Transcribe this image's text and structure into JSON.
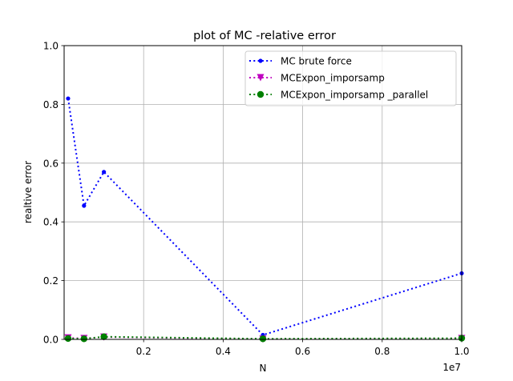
{
  "chart_data": {
    "type": "line",
    "title": "plot of MC -relative error",
    "xlabel": "N",
    "ylabel": "realtive error",
    "x_offset_label": "1e7",
    "xlim": [
      0,
      1.0
    ],
    "ylim": [
      0,
      1.0
    ],
    "x_ticks": [
      0.2,
      0.4,
      0.6,
      0.8,
      1.0
    ],
    "x_tick_labels": [
      "0.2",
      "0.4",
      "0.6",
      "0.8",
      "1.0"
    ],
    "y_ticks": [
      0.0,
      0.2,
      0.4,
      0.6,
      0.8,
      1.0
    ],
    "y_tick_labels": [
      "0.0",
      "0.2",
      "0.4",
      "0.6",
      "0.8",
      "1.0"
    ],
    "grid": true,
    "legend_position": "top-right",
    "series": [
      {
        "name": "MC brute force",
        "color": "#0000ff",
        "marker": "circle-small",
        "x": [
          0.01,
          0.05,
          0.1,
          0.5,
          1.0
        ],
        "y": [
          0.82,
          0.455,
          0.57,
          0.015,
          0.225
        ]
      },
      {
        "name": "MCExpon_imporsamp",
        "color": "#bf00bf",
        "marker": "triangle-down",
        "x": [
          0.01,
          0.05,
          0.1,
          0.5,
          1.0
        ],
        "y": [
          0.005,
          0.003,
          0.008,
          0.001,
          0.003
        ]
      },
      {
        "name": "MCExpon_imporsamp _parallel",
        "color": "#008000",
        "marker": "circle",
        "x": [
          0.01,
          0.05,
          0.1,
          0.5,
          1.0
        ],
        "y": [
          0.003,
          0.002,
          0.009,
          0.002,
          0.004
        ]
      }
    ]
  }
}
